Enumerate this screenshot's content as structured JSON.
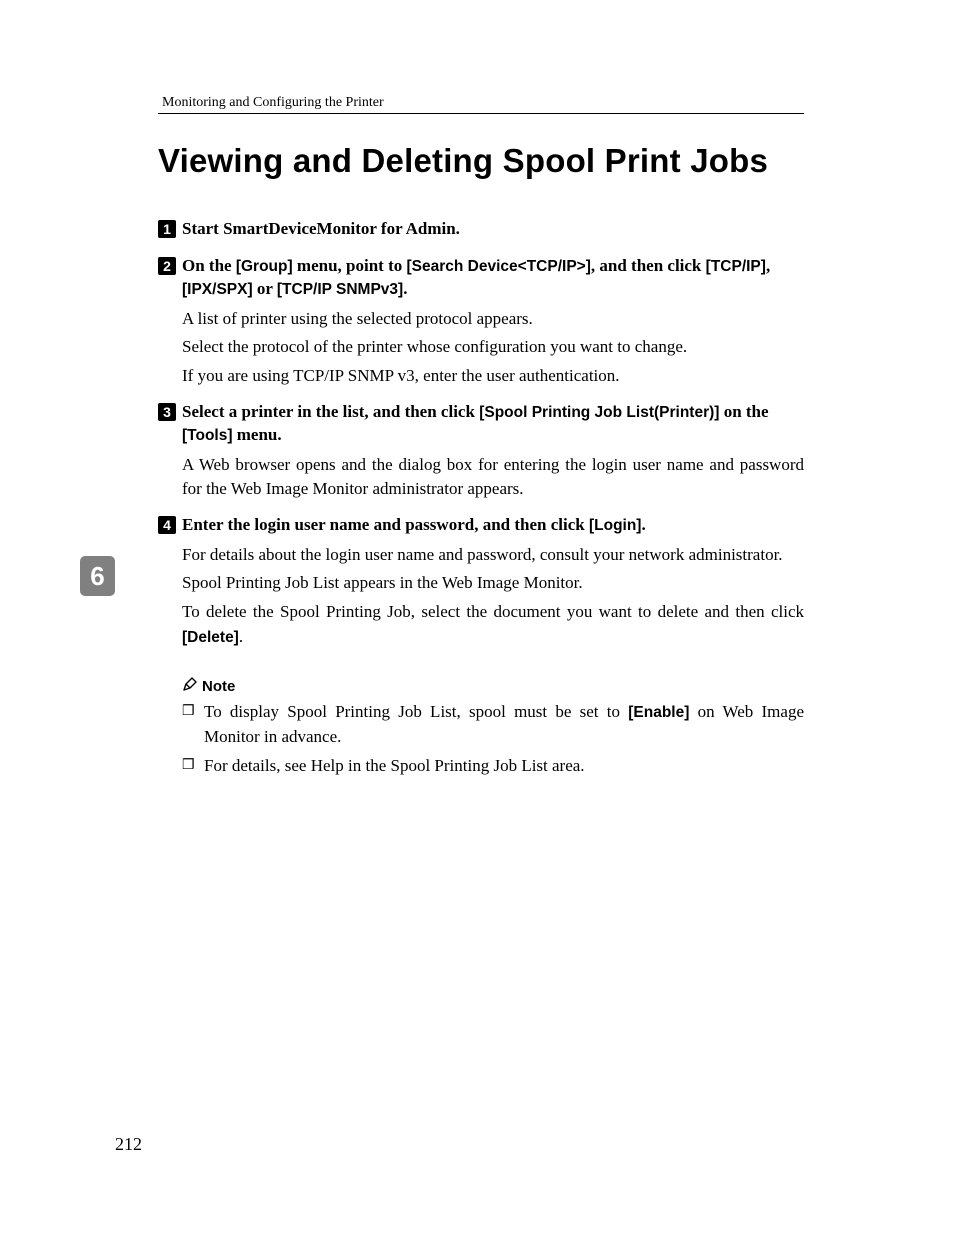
{
  "header": {
    "running_title": "Monitoring and Configuring the Printer"
  },
  "title": "Viewing and Deleting Spool Print Jobs",
  "section_tab": "6",
  "steps": [
    {
      "num": "1",
      "head_parts": [
        {
          "t": "Start SmartDeviceMonitor for Admin.",
          "sans": false
        }
      ],
      "bodies": []
    },
    {
      "num": "2",
      "head_parts": [
        {
          "t": "On the ",
          "sans": false
        },
        {
          "t": "[Group]",
          "sans": true
        },
        {
          "t": " menu, point to ",
          "sans": false
        },
        {
          "t": "[Search Device<TCP/IP>]",
          "sans": true
        },
        {
          "t": ", and then click ",
          "sans": false
        },
        {
          "t": "[TCP/IP]",
          "sans": true
        },
        {
          "t": ", ",
          "sans": false
        },
        {
          "t": "[IPX/SPX]",
          "sans": true
        },
        {
          "t": " or ",
          "sans": false
        },
        {
          "t": "[TCP/IP SNMPv3]",
          "sans": true
        },
        {
          "t": ".",
          "sans": false
        }
      ],
      "bodies": [
        [
          {
            "t": "A list of printer using the selected protocol appears.",
            "sans": false
          }
        ],
        [
          {
            "t": "Select the protocol of the printer whose configuration you want to change.",
            "sans": false
          }
        ],
        [
          {
            "t": "If you are using TCP/IP SNMP v3, enter the user authentication.",
            "sans": false
          }
        ]
      ]
    },
    {
      "num": "3",
      "head_parts": [
        {
          "t": "Select a printer in the list, and then click ",
          "sans": false
        },
        {
          "t": "[Spool Printing Job List(Printer)]",
          "sans": true
        },
        {
          "t": " on the ",
          "sans": false
        },
        {
          "t": "[Tools]",
          "sans": true
        },
        {
          "t": " menu.",
          "sans": false
        }
      ],
      "bodies": [
        [
          {
            "t": "A Web browser opens and the dialog box for entering the login user name and password for the Web Image Monitor administrator appears.",
            "sans": false
          }
        ]
      ]
    },
    {
      "num": "4",
      "head_parts": [
        {
          "t": "Enter the login user name and password, and then click ",
          "sans": false
        },
        {
          "t": "[Login]",
          "sans": true
        },
        {
          "t": ".",
          "sans": false
        }
      ],
      "bodies": [
        [
          {
            "t": "For details about the login user name and password, consult your network administrator.",
            "sans": false
          }
        ],
        [
          {
            "t": "Spool Printing Job List appears in the Web Image Monitor.",
            "sans": false
          }
        ],
        [
          {
            "t": "To delete the Spool Printing Job, select the document you want to delete and then click ",
            "sans": false
          },
          {
            "t": "[Delete]",
            "sans": true
          },
          {
            "t": ".",
            "sans": false
          }
        ]
      ]
    }
  ],
  "note": {
    "label": "Note",
    "items": [
      [
        {
          "t": "To display Spool Printing Job List, spool must be set to ",
          "sans": false
        },
        {
          "t": "[Enable]",
          "sans": true
        },
        {
          "t": " on Web Image Monitor in advance.",
          "sans": false
        }
      ],
      [
        {
          "t": "For details, see Help in the Spool Printing Job List area.",
          "sans": false
        }
      ]
    ]
  },
  "page_number": "212"
}
